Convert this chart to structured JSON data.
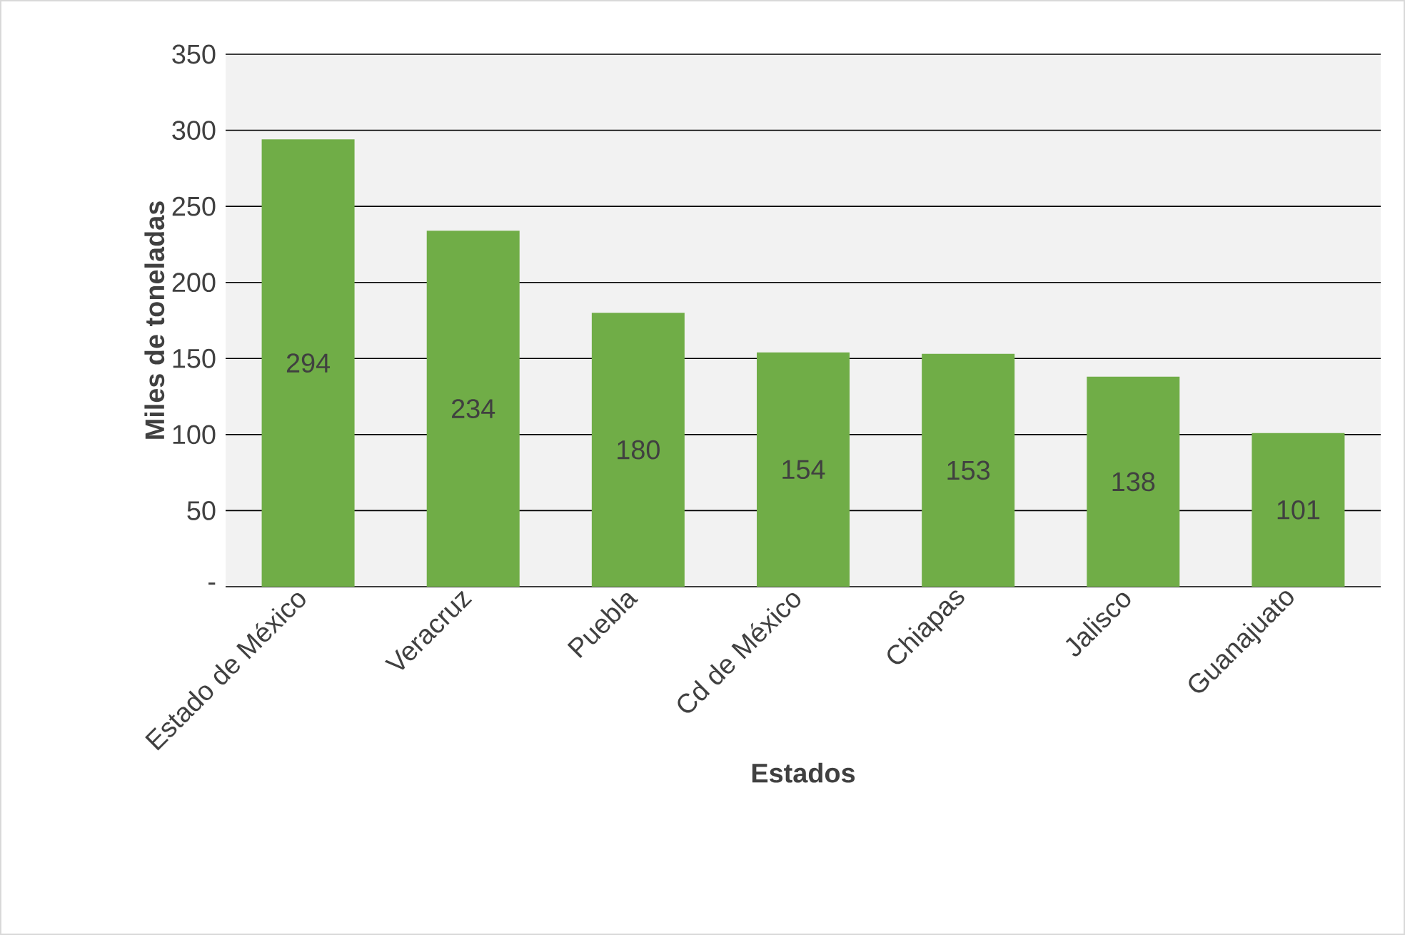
{
  "chart_data": {
    "type": "bar",
    "xlabel": "Estados",
    "ylabel": "Miles de toneladas",
    "categories": [
      "Estado de México",
      "Veracruz",
      "Puebla",
      "Cd de México",
      "Chiapas",
      "Jalisco",
      "Guanajuato"
    ],
    "values": [
      294,
      234,
      180,
      154,
      153,
      138,
      101
    ],
    "color": "#70ad47",
    "ylim": [
      0,
      350
    ],
    "yticks": [
      {
        "value": 0,
        "label": "-"
      },
      50,
      100,
      150,
      200,
      250,
      300,
      350
    ],
    "grid": "y",
    "data_labels": true
  }
}
